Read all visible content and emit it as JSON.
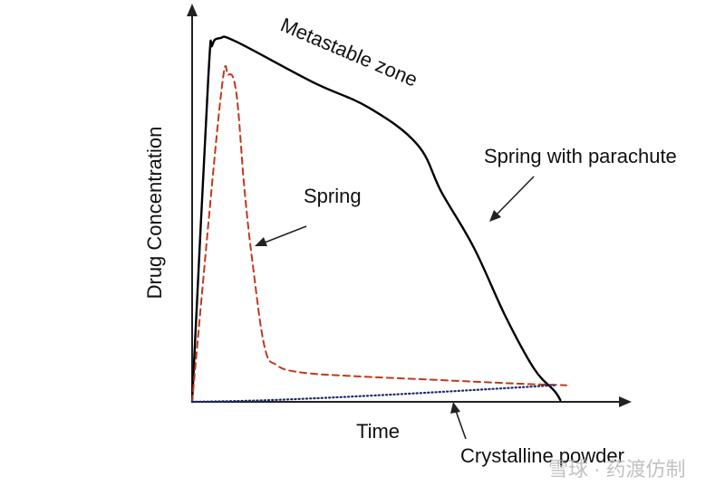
{
  "chart_data": {
    "type": "line",
    "title": "",
    "xlabel": "Time",
    "ylabel": "Drug Concentration",
    "xlim": [
      0,
      100
    ],
    "ylim": [
      0,
      100
    ],
    "grid": false,
    "legend": "none",
    "series": [
      {
        "label": "Spring with parachute",
        "style": "solid",
        "color": "#000000",
        "points": [
          [
            0,
            0
          ],
          [
            4,
            88
          ],
          [
            5,
            97
          ],
          [
            7,
            99
          ],
          [
            11,
            98
          ],
          [
            30,
            87
          ],
          [
            44,
            80
          ],
          [
            56,
            70
          ],
          [
            62,
            57
          ],
          [
            70,
            42
          ],
          [
            78,
            23
          ],
          [
            85,
            9
          ],
          [
            90,
            3
          ],
          [
            91.5,
            0.5
          ]
        ]
      },
      {
        "label": "Spring",
        "style": "dashed",
        "color": "#c0391b",
        "points": [
          [
            0,
            0
          ],
          [
            7,
            82
          ],
          [
            9,
            89
          ],
          [
            11,
            84
          ],
          [
            13,
            58
          ],
          [
            15,
            38
          ],
          [
            18,
            15
          ],
          [
            21,
            10
          ],
          [
            27,
            8
          ],
          [
            40,
            7
          ],
          [
            60,
            6
          ],
          [
            80,
            5
          ],
          [
            93,
            4.5
          ]
        ]
      },
      {
        "label": "Crystalline powder",
        "style": "dotted",
        "color": "#1c2a6e",
        "points": [
          [
            0,
            0
          ],
          [
            20,
            0.5
          ],
          [
            50,
            2
          ],
          [
            90,
            4.5
          ]
        ]
      }
    ],
    "annotations": [
      {
        "text": "Metastable zone"
      },
      {
        "text": "Spring"
      },
      {
        "text": "Spring with parachute"
      },
      {
        "text": "Crystalline powder"
      }
    ]
  },
  "watermark": {
    "text": "雪球 · 药渡仿制"
  }
}
